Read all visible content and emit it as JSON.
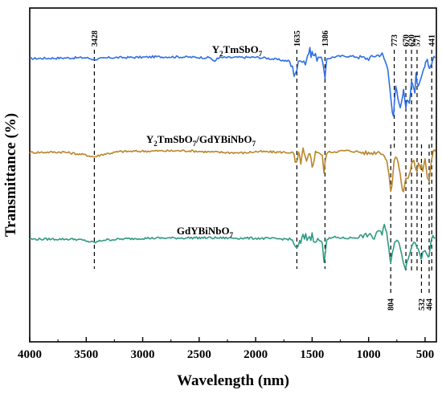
{
  "chart_data": {
    "type": "line",
    "xlabel": "Wavelength (nm)",
    "ylabel": "Transmittance (%)",
    "xlim": [
      4000,
      400
    ],
    "x_reversed": true,
    "x_ticks": [
      4000,
      3500,
      3000,
      2500,
      2000,
      1500,
      1000,
      500
    ],
    "y_tick_labels": false,
    "grid": false,
    "series": [
      {
        "name": "Y2TmSbO7",
        "color": "#2f6fe3",
        "points": [
          [
            4000,
            0
          ],
          [
            3800,
            0.05
          ],
          [
            3500,
            0.1
          ],
          [
            3428,
            -0.1
          ],
          [
            3300,
            0.1
          ],
          [
            3000,
            0.15
          ],
          [
            2900,
            0.2
          ],
          [
            2700,
            0.2
          ],
          [
            2400,
            0.1
          ],
          [
            2360,
            -0.4
          ],
          [
            2340,
            0.1
          ],
          [
            2000,
            0.15
          ],
          [
            1900,
            0.05
          ],
          [
            1700,
            -0.3
          ],
          [
            1660,
            -1.6
          ],
          [
            1635,
            -1.2
          ],
          [
            1600,
            0.2
          ],
          [
            1560,
            -0.4
          ],
          [
            1530,
            0.8
          ],
          [
            1500,
            0.6
          ],
          [
            1470,
            0.2
          ],
          [
            1420,
            0.2
          ],
          [
            1400,
            -0.8
          ],
          [
            1386,
            -2.3
          ],
          [
            1370,
            0.0
          ],
          [
            1300,
            0.2
          ],
          [
            1200,
            0.3
          ],
          [
            1100,
            0.2
          ],
          [
            1000,
            0.0
          ],
          [
            950,
            0.3
          ],
          [
            880,
            0.5
          ],
          [
            850,
            -0.4
          ],
          [
            830,
            -1.2
          ],
          [
            810,
            -3.5
          ],
          [
            790,
            -6.2
          ],
          [
            780,
            -6.6
          ],
          [
            773,
            -5.2
          ],
          [
            760,
            -3.0
          ],
          [
            740,
            -4.5
          ],
          [
            720,
            -5.5
          ],
          [
            700,
            -4.3
          ],
          [
            690,
            -3.6
          ],
          [
            680,
            -4.6
          ],
          [
            670,
            -5.5
          ],
          [
            660,
            -4.6
          ],
          [
            640,
            -5.0
          ],
          [
            630,
            -4.0
          ],
          [
            620,
            -2.5
          ],
          [
            600,
            -3.4
          ],
          [
            590,
            -3.8
          ],
          [
            580,
            -1.6
          ],
          [
            571,
            -2.9
          ],
          [
            560,
            -3.0
          ],
          [
            540,
            -2.3
          ],
          [
            530,
            -2.0
          ],
          [
            510,
            -1.2
          ],
          [
            495,
            -0.5
          ],
          [
            480,
            -0.2
          ],
          [
            470,
            -0.9
          ],
          [
            460,
            -1.2
          ],
          [
            441,
            -0.6
          ],
          [
            430,
            0.0
          ],
          [
            420,
            0.3
          ],
          [
            410,
            0.1
          ]
        ]
      },
      {
        "name": "Y2TmSbO7/GdYBiNbO7",
        "color": "#b8862b",
        "points": [
          [
            4000,
            0
          ],
          [
            3700,
            0.05
          ],
          [
            3500,
            -0.3
          ],
          [
            3428,
            -0.5
          ],
          [
            3350,
            -0.2
          ],
          [
            3200,
            0.1
          ],
          [
            3000,
            0.15
          ],
          [
            2600,
            0.2
          ],
          [
            2400,
            0.05
          ],
          [
            2100,
            -0.05
          ],
          [
            2000,
            0.1
          ],
          [
            1700,
            0.0
          ],
          [
            1660,
            -0.5
          ],
          [
            1640,
            -1.5
          ],
          [
            1620,
            -0.4
          ],
          [
            1600,
            -0.9
          ],
          [
            1580,
            0.1
          ],
          [
            1550,
            -1.2
          ],
          [
            1520,
            -0.3
          ],
          [
            1500,
            -1.6
          ],
          [
            1480,
            -0.3
          ],
          [
            1450,
            0.1
          ],
          [
            1410,
            -0.3
          ],
          [
            1395,
            -2.4
          ],
          [
            1386,
            -1.2
          ],
          [
            1370,
            0.0
          ],
          [
            1300,
            0.1
          ],
          [
            1200,
            0.2
          ],
          [
            1100,
            0.1
          ],
          [
            1000,
            -0.1
          ],
          [
            900,
            0.1
          ],
          [
            870,
            -0.2
          ],
          [
            840,
            -1.0
          ],
          [
            820,
            -2.4
          ],
          [
            804,
            -4.5
          ],
          [
            790,
            -3.3
          ],
          [
            775,
            -1.0
          ],
          [
            760,
            -0.5
          ],
          [
            740,
            -1.0
          ],
          [
            720,
            -2.5
          ],
          [
            700,
            -4.3
          ],
          [
            690,
            -4.4
          ],
          [
            680,
            -3.6
          ],
          [
            670,
            -3.0
          ],
          [
            650,
            -3.0
          ],
          [
            630,
            -2.0
          ],
          [
            620,
            -1.2
          ],
          [
            600,
            -0.8
          ],
          [
            590,
            -1.5
          ],
          [
            571,
            -2.2
          ],
          [
            560,
            -1.2
          ],
          [
            540,
            -1.8
          ],
          [
            532,
            -1.4
          ],
          [
            520,
            -2.1
          ],
          [
            500,
            -0.8
          ],
          [
            480,
            -2.8
          ],
          [
            464,
            -3.2
          ],
          [
            450,
            -1.6
          ],
          [
            441,
            -0.7
          ],
          [
            430,
            0.0
          ],
          [
            420,
            0.3
          ],
          [
            410,
            0.1
          ]
        ]
      },
      {
        "name": "GdYBiNbO7",
        "color": "#2f9a82",
        "points": [
          [
            4000,
            0
          ],
          [
            3600,
            0.0
          ],
          [
            3500,
            -0.2
          ],
          [
            3428,
            -0.4
          ],
          [
            3350,
            -0.1
          ],
          [
            3200,
            0.0
          ],
          [
            3000,
            0.1
          ],
          [
            2500,
            0.15
          ],
          [
            2000,
            0.1
          ],
          [
            1700,
            0.0
          ],
          [
            1660,
            -0.3
          ],
          [
            1635,
            -1.4
          ],
          [
            1610,
            -0.5
          ],
          [
            1580,
            0.1
          ],
          [
            1500,
            0.3
          ],
          [
            1450,
            0.0
          ],
          [
            1410,
            -0.4
          ],
          [
            1395,
            -2.7
          ],
          [
            1386,
            -1.8
          ],
          [
            1370,
            0.0
          ],
          [
            1300,
            0.2
          ],
          [
            1200,
            0.1
          ],
          [
            1100,
            0.2
          ],
          [
            1000,
            0.5
          ],
          [
            950,
            0.1
          ],
          [
            920,
            1.0
          ],
          [
            880,
            0.5
          ],
          [
            860,
            1.6
          ],
          [
            840,
            0.8
          ],
          [
            820,
            -1.2
          ],
          [
            810,
            -2.4
          ],
          [
            804,
            -2.6
          ],
          [
            790,
            -1.5
          ],
          [
            770,
            -0.4
          ],
          [
            750,
            0.0
          ],
          [
            730,
            -0.5
          ],
          [
            710,
            -1.5
          ],
          [
            690,
            -2.8
          ],
          [
            675,
            -3.3
          ],
          [
            660,
            -2.5
          ],
          [
            640,
            -1.8
          ],
          [
            620,
            -0.8
          ],
          [
            600,
            -0.4
          ],
          [
            580,
            -0.6
          ],
          [
            560,
            -1.2
          ],
          [
            540,
            -2.1
          ],
          [
            532,
            -2.3
          ],
          [
            520,
            -1.5
          ],
          [
            500,
            -1.3
          ],
          [
            480,
            -1.8
          ],
          [
            464,
            -2.0
          ],
          [
            450,
            -0.5
          ],
          [
            441,
            0.1
          ],
          [
            430,
            0.3
          ],
          [
            420,
            0.2
          ],
          [
            410,
            0.1
          ]
        ]
      }
    ],
    "series_labels": [
      {
        "text": "Y2TmSbO7",
        "main": "Y",
        "sub1": "2",
        "mid": "TmSbO",
        "sub2": "7",
        "rest": "",
        "sub3": ""
      },
      {
        "text": "Y2TmSbO7/GdYBiNbO7",
        "main": "Y",
        "sub1": "2",
        "mid": "TmSbO",
        "sub2": "7",
        "rest": "/GdYBiNbO",
        "sub3": "7"
      },
      {
        "text": "GdYBiNbO7",
        "main": "GdYBiNbO",
        "sub1": "7",
        "mid": "",
        "sub2": "",
        "rest": "",
        "sub3": ""
      }
    ],
    "peak_markers_top": [
      "3428",
      "1635",
      "1386",
      "773",
      "670",
      "620",
      "571",
      "441"
    ],
    "peak_markers_bottom": [
      "804",
      "532",
      "464"
    ],
    "peak_values_top": [
      3428,
      1635,
      1386,
      773,
      670,
      620,
      571,
      441
    ],
    "peak_values_bottom": [
      804,
      532,
      464
    ]
  }
}
